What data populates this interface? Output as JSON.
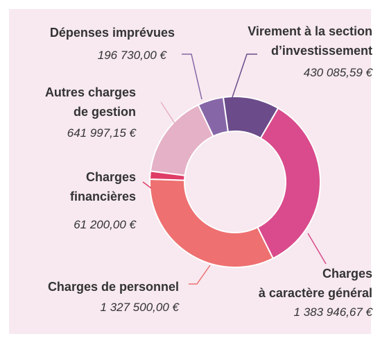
{
  "chart_data": {
    "type": "donut",
    "categories": [
      "Virement à la section\nd’investissement",
      "Charges\nà caractère général",
      "Charges de personnel",
      "Charges\nfinancières",
      "Autres charges\nde gestion",
      "Dépenses imprévues"
    ],
    "values": [
      430085.59,
      1383946.67,
      1327500,
      61200,
      641997.15,
      196730
    ],
    "value_labels": [
      "430 085,59 €",
      "1 383 946,67 €",
      "1 327 500,00 €",
      "61 200,00 €",
      "641 997,15 €",
      "196 730,00 €"
    ],
    "colors": [
      "#6b4b8a",
      "#d94b8c",
      "#ee7070",
      "#df3d67",
      "#e5b1c6",
      "#8766a8"
    ]
  }
}
